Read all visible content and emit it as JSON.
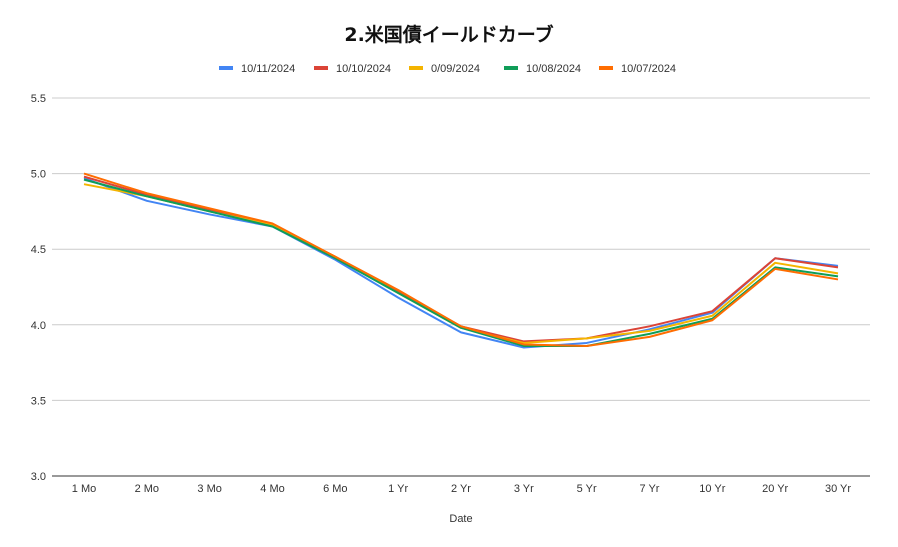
{
  "chart_data": {
    "type": "line",
    "title": "2.米国債イールドカーブ",
    "xlabel": "Date",
    "ylabel": "",
    "ylim": [
      3.0,
      5.5
    ],
    "yticks": [
      3.0,
      3.5,
      4.0,
      4.5,
      5.0,
      5.5
    ],
    "grid": true,
    "legend_position": "top",
    "categories": [
      "1 Mo",
      "2 Mo",
      "3 Mo",
      "4 Mo",
      "6 Mo",
      "1 Yr",
      "2 Yr",
      "3 Yr",
      "5 Yr",
      "7 Yr",
      "10 Yr",
      "20 Yr",
      "30 Yr"
    ],
    "series": [
      {
        "name": "10/11/2024",
        "color": "#4285f4",
        "values": [
          4.97,
          4.82,
          4.73,
          4.65,
          4.43,
          4.18,
          3.95,
          3.85,
          3.88,
          3.97,
          4.08,
          4.44,
          4.39
        ]
      },
      {
        "name": "10/10/2024",
        "color": "#db4437",
        "values": [
          4.98,
          4.86,
          4.76,
          4.66,
          4.45,
          4.22,
          3.99,
          3.89,
          3.91,
          3.99,
          4.09,
          4.44,
          4.38
        ]
      },
      {
        "name": "0/09/2024",
        "color": "#f4b400",
        "values": [
          4.93,
          4.85,
          4.75,
          4.66,
          4.45,
          4.21,
          3.98,
          3.88,
          3.91,
          3.96,
          4.06,
          4.41,
          4.34
        ]
      },
      {
        "name": "10/08/2024",
        "color": "#0f9d58",
        "values": [
          4.96,
          4.85,
          4.75,
          4.65,
          4.44,
          4.21,
          3.98,
          3.86,
          3.86,
          3.94,
          4.04,
          4.38,
          4.32
        ]
      },
      {
        "name": "10/07/2024",
        "color": "#ff6d01",
        "values": [
          5.0,
          4.87,
          4.77,
          4.67,
          4.45,
          4.23,
          3.99,
          3.87,
          3.86,
          3.92,
          4.03,
          4.37,
          4.3
        ]
      }
    ]
  }
}
